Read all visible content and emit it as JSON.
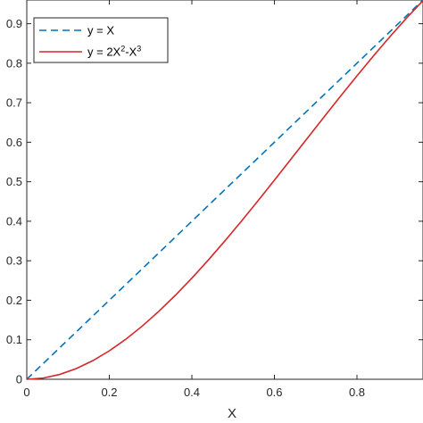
{
  "chart_data": {
    "type": "line",
    "title": "",
    "xlabel": "X",
    "ylabel": "",
    "xlim": [
      0,
      0.96
    ],
    "ylim": [
      0,
      0.96
    ],
    "x_ticks": [
      0,
      0.2,
      0.4,
      0.6,
      0.8
    ],
    "x_tick_labels": [
      "0",
      "0.2",
      "0.4",
      "0.6",
      "0.8"
    ],
    "y_ticks": [
      0,
      0.1,
      0.2,
      0.3,
      0.4,
      0.5,
      0.6,
      0.7,
      0.8,
      0.9
    ],
    "y_tick_labels": [
      "0",
      "0.1",
      "0.2",
      "0.3",
      "0.4",
      "0.5",
      "0.6",
      "0.7",
      "0.8",
      "0.9"
    ],
    "grid": false,
    "legend_position": "top-left",
    "series": [
      {
        "name": "y = X",
        "name_parts": {
          "prefix": "y = X"
        },
        "style": "dashed",
        "color": "#0072BD",
        "x": [
          0,
          0.2,
          0.4,
          0.6,
          0.8,
          0.96
        ],
        "y": [
          0,
          0.2,
          0.4,
          0.6,
          0.8,
          0.96
        ]
      },
      {
        "name": "y = 2X2-X3",
        "name_parts": {
          "prefix": "y = 2X",
          "sup1": "2",
          "mid": "-X",
          "sup2": "3"
        },
        "style": "solid",
        "color": "#D62728",
        "x": [
          0,
          0.04,
          0.08,
          0.12,
          0.16,
          0.2,
          0.24,
          0.28,
          0.32,
          0.36,
          0.4,
          0.44,
          0.48,
          0.52,
          0.56,
          0.6,
          0.64,
          0.68,
          0.72,
          0.76,
          0.8,
          0.84,
          0.88,
          0.92,
          0.96
        ],
        "y": [
          0,
          0.0031,
          0.0123,
          0.0271,
          0.0471,
          0.072,
          0.1014,
          0.1348,
          0.172,
          0.2126,
          0.256,
          0.302,
          0.3502,
          0.4002,
          0.4516,
          0.504,
          0.5571,
          0.6104,
          0.6636,
          0.7163,
          0.768,
          0.8185,
          0.8673,
          0.9141,
          0.9585
        ]
      }
    ]
  }
}
